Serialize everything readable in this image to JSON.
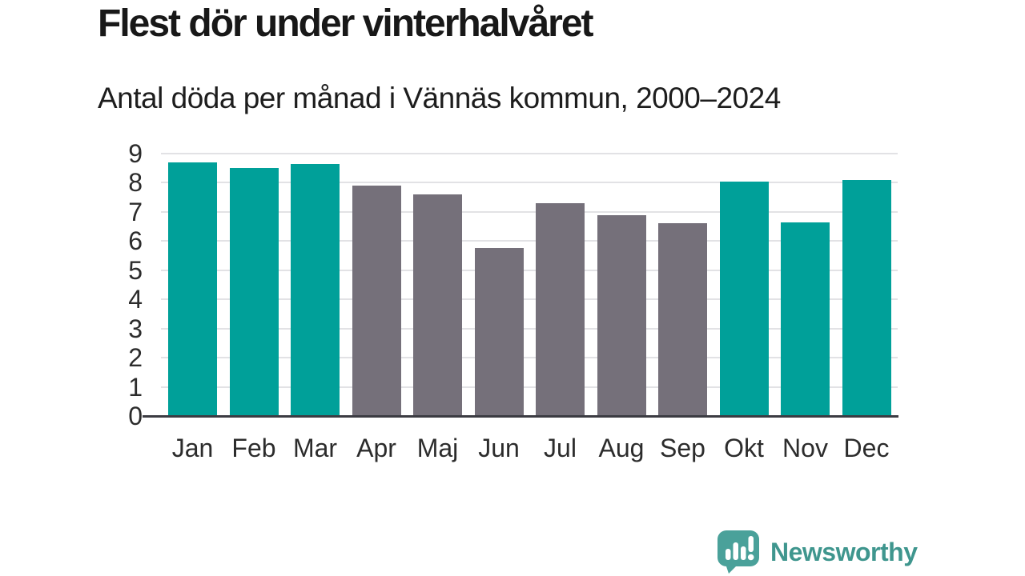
{
  "header": {
    "title": "Flest dör under vinterhalvåret",
    "subtitle": "Antal döda per månad i Vännäs kommun, 2000–2024"
  },
  "chart_data": {
    "type": "bar",
    "title": "Flest dör under vinterhalvåret",
    "subtitle": "Antal döda per månad i Vännäs kommun, 2000–2024",
    "categories": [
      "Jan",
      "Feb",
      "Mar",
      "Apr",
      "Maj",
      "Jun",
      "Jul",
      "Aug",
      "Sep",
      "Okt",
      "Nov",
      "Dec"
    ],
    "values": [
      8.7,
      8.5,
      8.65,
      7.9,
      7.6,
      5.75,
      7.3,
      6.9,
      6.6,
      8.05,
      6.65,
      8.1
    ],
    "highlighted": [
      true,
      true,
      true,
      false,
      false,
      false,
      false,
      false,
      false,
      true,
      true,
      true
    ],
    "xlabel": "",
    "ylabel": "",
    "ylim": [
      0,
      9
    ],
    "yticks": [
      0,
      1,
      2,
      3,
      4,
      5,
      6,
      7,
      8,
      9
    ],
    "grid": true,
    "legend": "none",
    "colors": {
      "highlight": "#00a099",
      "base": "#75707a",
      "axis_text": "#2c2c2c",
      "baseline": "#3b3b42",
      "gridline": "#e2e2e5"
    }
  },
  "branding": {
    "logo_text": "Newsworthy",
    "logo_text_color": "#3f968e",
    "logo_bubble_color": "#4aa19a",
    "logo_icon": "newsworthy-bar-chart-bubble-icon"
  }
}
